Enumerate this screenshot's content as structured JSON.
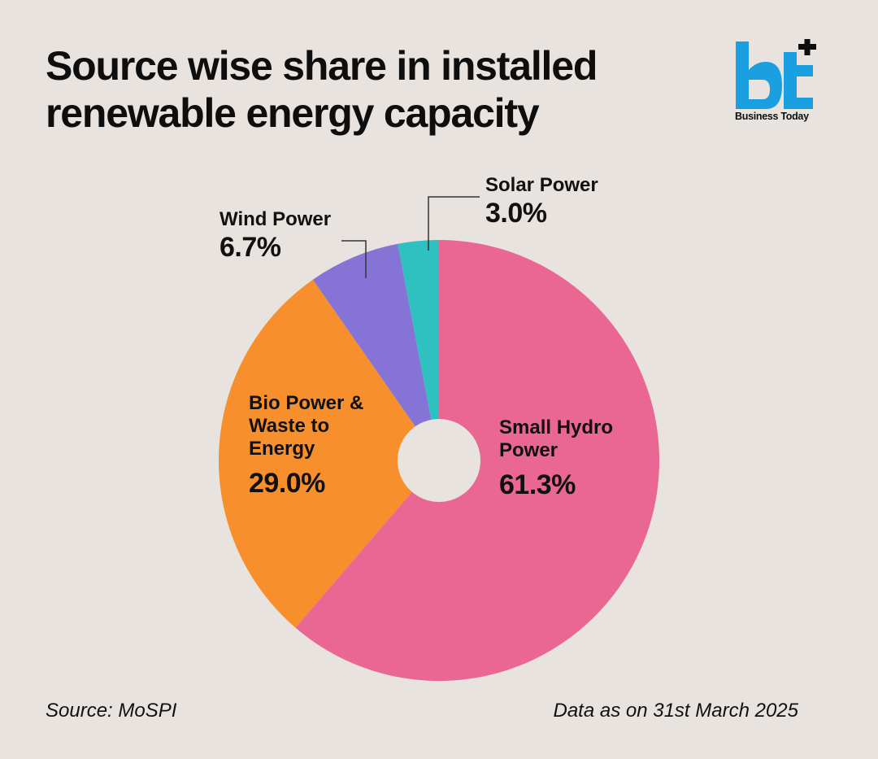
{
  "title_lines": [
    "Source wise share in  installed",
    "renewable energy capacity"
  ],
  "logo": {
    "mark": "bt",
    "text": "Business Today",
    "color": "#1aa0e0"
  },
  "source": "Source: MoSPI",
  "date_note": "Data as on 31st March 2025",
  "chart_data": {
    "type": "pie",
    "donut": true,
    "slices": [
      {
        "label": "Solar Power",
        "value": 3.0,
        "value_label": "3.0%",
        "color": "#2fc0c0"
      },
      {
        "label": "Small Hydro Power",
        "value": 61.3,
        "value_label": "61.3%",
        "color": "#e96792"
      },
      {
        "label": "Bio Power & Waste to Energy",
        "value": 29.0,
        "value_label": "29.0%",
        "color": "#f7902c"
      },
      {
        "label": "Wind Power",
        "value": 6.7,
        "value_label": "6.7%",
        "color": "#8574d6"
      }
    ]
  }
}
